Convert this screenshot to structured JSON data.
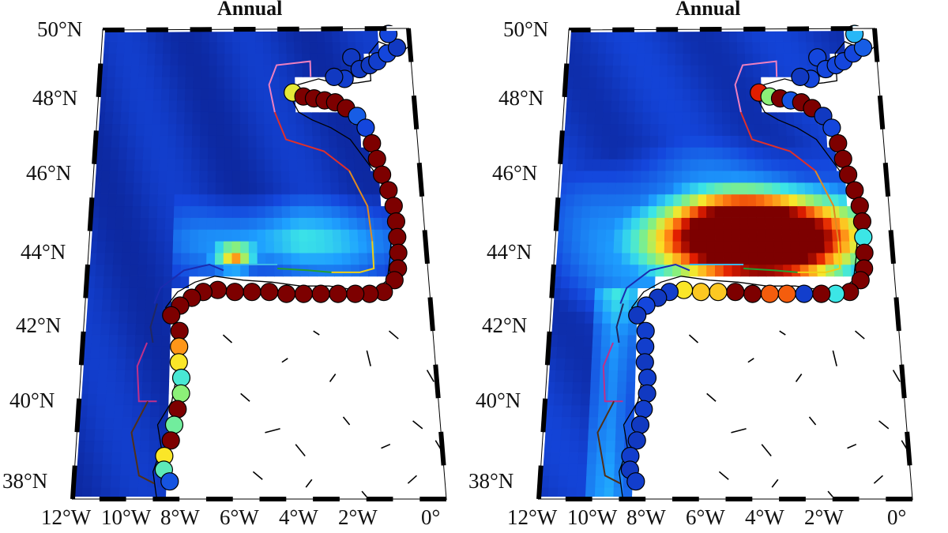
{
  "panels": [
    {
      "title": "Annual",
      "variant": "left"
    },
    {
      "title": "Annual",
      "variant": "right"
    }
  ],
  "lat_labels": [
    "50°N",
    "48°N",
    "46°N",
    "44°N",
    "42°N",
    "40°N",
    "38°N"
  ],
  "lon_labels": [
    "12°W",
    "10°W",
    "8°W",
    "6°W",
    "4°W",
    "2°W",
    "0°"
  ],
  "colors": {
    "ocean_low": "#0a1f9e",
    "land": "#ffffff",
    "coast": "#000000",
    "dark_red": "#7a0000",
    "red": "#d81a00",
    "orange": "#ff7a10",
    "yellow": "#f5d51a",
    "cyan": "#38d8e0",
    "green": "#8ae870",
    "blue": "#2040d8"
  }
}
